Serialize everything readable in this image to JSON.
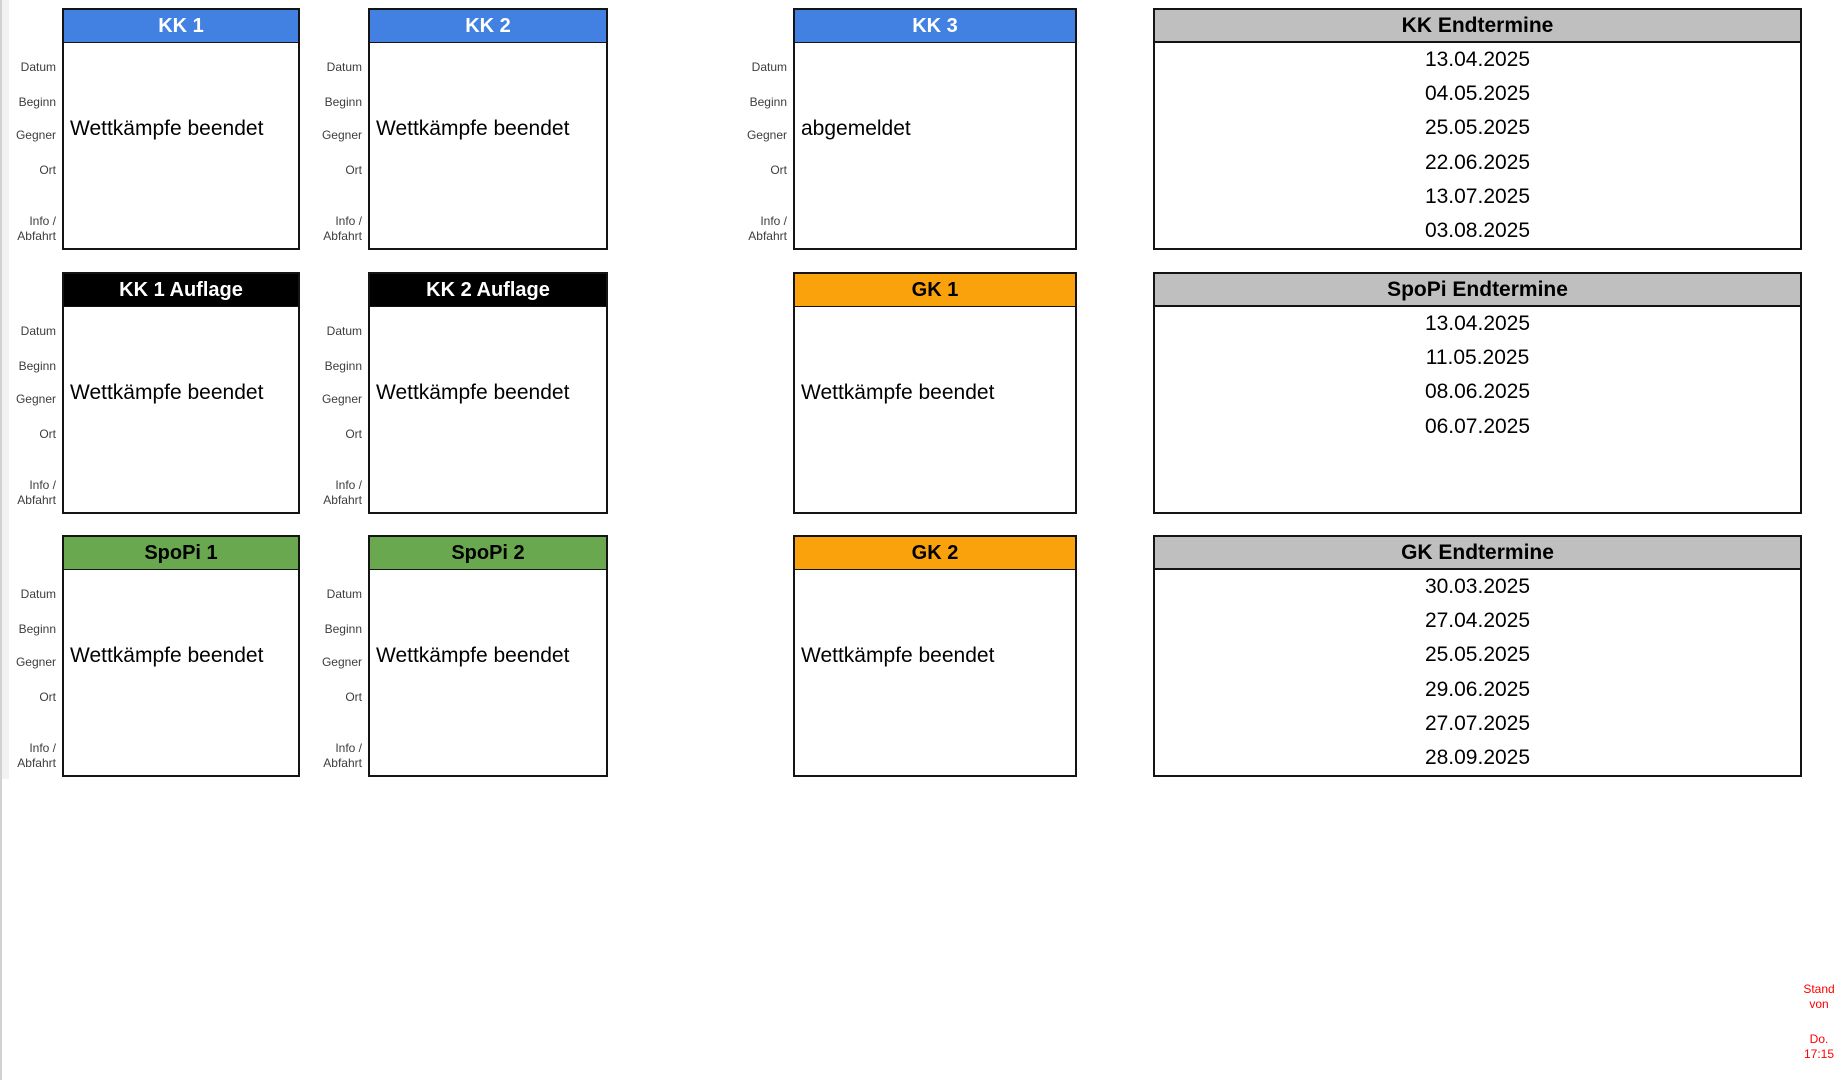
{
  "board": {
    "background": "#FFFFFF"
  },
  "field_labels": {
    "datum": "Datum",
    "beginn": "Beginn",
    "gegner": "Gegner",
    "ort": "Ort",
    "info": "Info /",
    "abfahrt": "Abfahrt"
  },
  "cards": [
    {
      "title": "KK 1",
      "status": "Wettkämpfe beendet",
      "header_bg": "#4280E2",
      "header_fg": "#FFFFFF"
    },
    {
      "title": "KK 2",
      "status": "Wettkämpfe beendet",
      "header_bg": "#4280E2",
      "header_fg": "#FFFFFF"
    },
    {
      "title": "KK 3",
      "status": "abgemeldet",
      "header_bg": "#4280E2",
      "header_fg": "#FFFFFF"
    },
    {
      "title": "KK 1 Auflage",
      "status": "Wettkämpfe beendet",
      "header_bg": "#000000",
      "header_fg": "#FFFFFF"
    },
    {
      "title": "KK 2 Auflage",
      "status": "Wettkämpfe beendet",
      "header_bg": "#000000",
      "header_fg": "#FFFFFF"
    },
    {
      "title": "GK 1",
      "status": "Wettkämpfe beendet",
      "header_bg": "#FAA20B",
      "header_fg": "#000000"
    },
    {
      "title": "SpoPi 1",
      "status": "Wettkämpfe beendet",
      "header_bg": "#6AA84F",
      "header_fg": "#000000"
    },
    {
      "title": "SpoPi 2",
      "status": "Wettkämpfe beendet",
      "header_bg": "#6AA84F",
      "header_fg": "#000000"
    },
    {
      "title": "GK 2",
      "status": "Wettkämpfe beendet",
      "header_bg": "#FAA20B",
      "header_fg": "#000000"
    }
  ],
  "panels": [
    {
      "title": "KK Endtermine",
      "header_bg": "#BFBFBF",
      "dates": [
        "13.04.2025",
        "04.05.2025",
        "25.05.2025",
        "22.06.2025",
        "13.07.2025",
        "03.08.2025"
      ]
    },
    {
      "title": "SpoPi Endtermine",
      "header_bg": "#BFBFBF",
      "dates": [
        "13.04.2025",
        "11.05.2025",
        "08.06.2025",
        "06.07.2025"
      ]
    },
    {
      "title": "GK Endtermine",
      "header_bg": "#BFBFBF",
      "dates": [
        "30.03.2025",
        "27.04.2025",
        "25.05.2025",
        "29.06.2025",
        "27.07.2025",
        "28.09.2025"
      ]
    }
  ],
  "status_note": {
    "line1": "Stand von",
    "line2": "Do. 17:15",
    "color": "#FF0000"
  }
}
